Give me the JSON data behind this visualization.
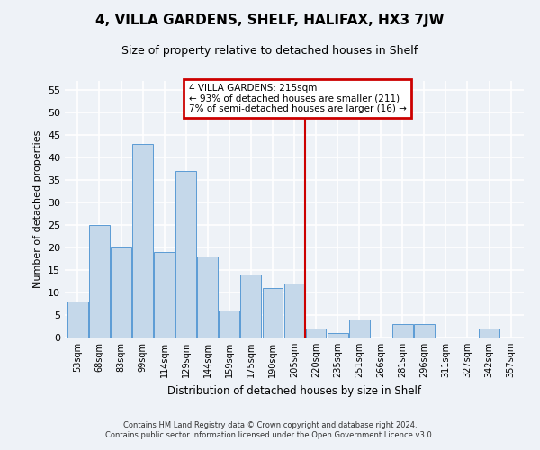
{
  "title": "4, VILLA GARDENS, SHELF, HALIFAX, HX3 7JW",
  "subtitle": "Size of property relative to detached houses in Shelf",
  "xlabel": "Distribution of detached houses by size in Shelf",
  "ylabel": "Number of detached properties",
  "categories": [
    "53sqm",
    "68sqm",
    "83sqm",
    "99sqm",
    "114sqm",
    "129sqm",
    "144sqm",
    "159sqm",
    "175sqm",
    "190sqm",
    "205sqm",
    "220sqm",
    "235sqm",
    "251sqm",
    "266sqm",
    "281sqm",
    "296sqm",
    "311sqm",
    "327sqm",
    "342sqm",
    "357sqm"
  ],
  "values": [
    8,
    25,
    20,
    43,
    19,
    37,
    18,
    6,
    14,
    11,
    12,
    2,
    1,
    4,
    0,
    3,
    3,
    0,
    0,
    2,
    0
  ],
  "bar_color": "#c5d8ea",
  "bar_edge_color": "#5b9bd5",
  "background_color": "#eef2f7",
  "grid_color": "#ffffff",
  "vline_color": "#cc0000",
  "annotation_title": "4 VILLA GARDENS: 215sqm",
  "annotation_line1": "← 93% of detached houses are smaller (211)",
  "annotation_line2": "7% of semi-detached houses are larger (16) →",
  "annotation_box_color": "#cc0000",
  "ylim": [
    0,
    57
  ],
  "yticks": [
    0,
    5,
    10,
    15,
    20,
    25,
    30,
    35,
    40,
    45,
    50,
    55
  ],
  "footer1": "Contains HM Land Registry data © Crown copyright and database right 2024.",
  "footer2": "Contains public sector information licensed under the Open Government Licence v3.0."
}
